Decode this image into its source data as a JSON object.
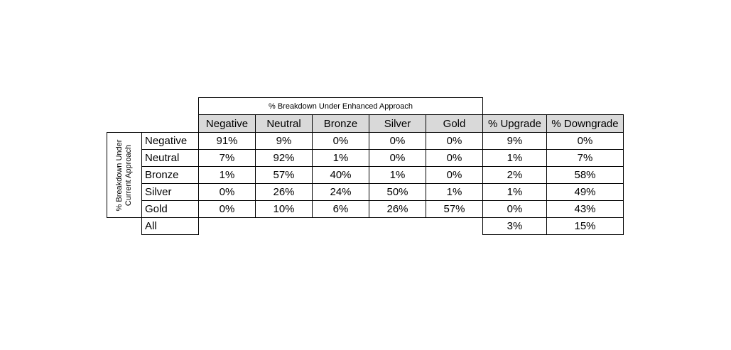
{
  "column_group_title": "% Breakdown Under Enhanced Approach",
  "row_group_title": "% Breakdown Under Current Approach",
  "columns": [
    "Negative",
    "Neutral",
    "Bronze",
    "Silver",
    "Gold",
    "% Upgrade",
    "% Downgrade"
  ],
  "rows": [
    {
      "label": "Negative",
      "cells": [
        "91%",
        "9%",
        "0%",
        "0%",
        "0%",
        "9%",
        "0%"
      ]
    },
    {
      "label": "Neutral",
      "cells": [
        "7%",
        "92%",
        "1%",
        "0%",
        "0%",
        "1%",
        "7%"
      ]
    },
    {
      "label": "Bronze",
      "cells": [
        "1%",
        "57%",
        "40%",
        "1%",
        "0%",
        "2%",
        "58%"
      ]
    },
    {
      "label": "Silver",
      "cells": [
        "0%",
        "26%",
        "24%",
        "50%",
        "1%",
        "1%",
        "49%"
      ]
    },
    {
      "label": "Gold",
      "cells": [
        "0%",
        "10%",
        "6%",
        "26%",
        "57%",
        "0%",
        "43%"
      ]
    }
  ],
  "all_row": {
    "label": "All",
    "cells": [
      "3%",
      "15%"
    ]
  }
}
